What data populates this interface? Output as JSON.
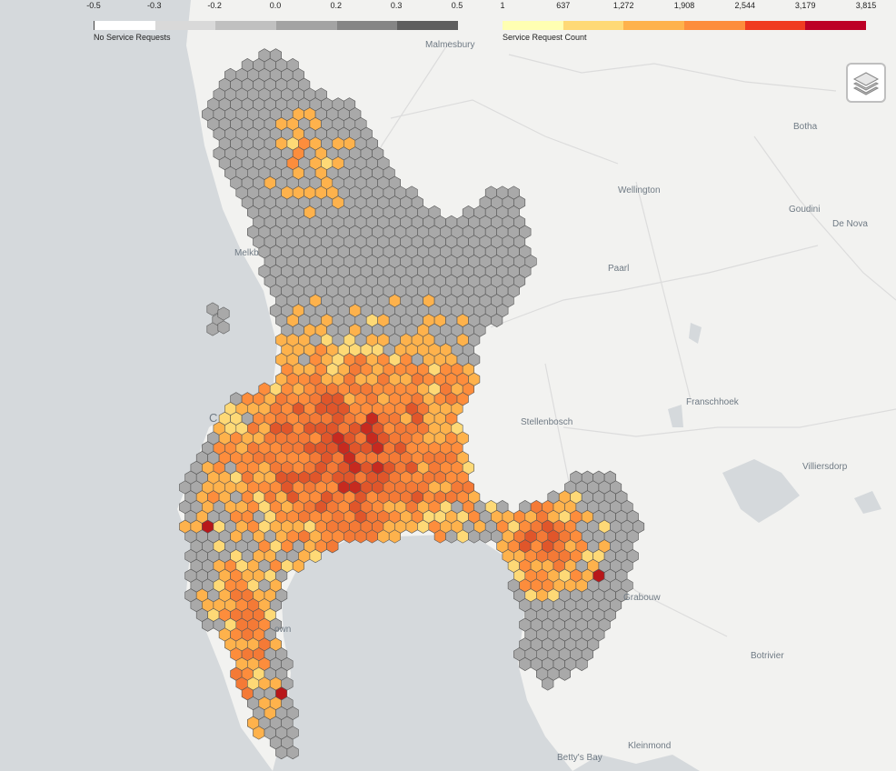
{
  "legend_neg": {
    "ticks": [
      "-0.5",
      "-0.3",
      "-0.2",
      "0.0",
      "0.2",
      "0.3",
      "0.5"
    ],
    "title": "No Service Requests",
    "colors": [
      "#ffffff",
      "#d9d9d9",
      "#c0c0c0",
      "#a3a3a3",
      "#858585",
      "#5e5e5e"
    ]
  },
  "legend_pos": {
    "ticks": [
      "1",
      "637",
      "1,272",
      "1,908",
      "2,544",
      "3,179",
      "3,815"
    ],
    "title": "Service Request Count",
    "colors": [
      "#ffffb2",
      "#fed976",
      "#feb24c",
      "#fd8d3c",
      "#f03b20",
      "#bd0026"
    ]
  },
  "towns": [
    "Malmesbury",
    "Hermon",
    "Botha",
    "Wellington",
    "Goudini",
    "De Nova",
    "Melkb",
    "Paarl",
    "Franschhoek",
    "Stellenbosch",
    "Villiersdorp",
    "Grabouw",
    "Botrivier",
    "Betty's Bay",
    "Kleinmond",
    "C",
    "own"
  ],
  "layers_icon": "layers-icon",
  "colors": {
    "land": "#f2f2f0",
    "water": "#d5d9dc",
    "no_request_hex": "#a9a9a9",
    "hex_outline": "#555555"
  }
}
